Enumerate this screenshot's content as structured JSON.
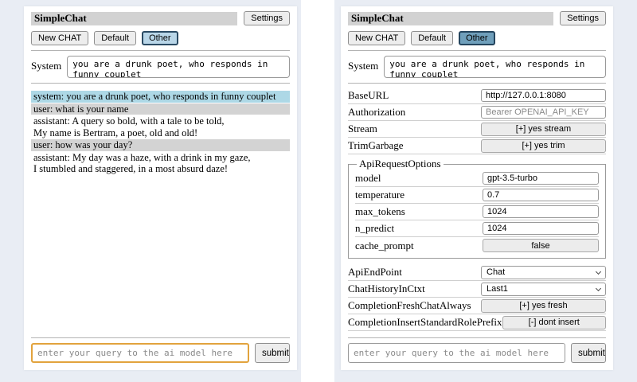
{
  "left": {
    "title": "SimpleChat",
    "settings_button": "Settings",
    "toolbar": {
      "new_chat": "New CHAT",
      "default_btn": "Default",
      "other": "Other"
    },
    "system": {
      "label": "System",
      "value": "you are a drunk poet, who responds in funny couplet"
    },
    "messages": [
      {
        "role": "system",
        "text": "system: you are a drunk poet, who responds in funny couplet"
      },
      {
        "role": "user",
        "text": "user: what is your name"
      },
      {
        "role": "assistant",
        "text": "assistant: A query so bold, with a tale to be told,\nMy name is Bertram, a poet, old and old!"
      },
      {
        "role": "user",
        "text": "user: how was your day?"
      },
      {
        "role": "assistant",
        "text": "assistant: My day was a haze, with a drink in my gaze,\nI stumbled and staggered, in a most absurd daze!"
      }
    ],
    "query": {
      "placeholder": "enter your query to the ai model here",
      "submit": "submit"
    }
  },
  "right": {
    "title": "SimpleChat",
    "settings_button": "Settings",
    "toolbar": {
      "new_chat": "New CHAT",
      "default_btn": "Default",
      "other": "Other"
    },
    "system": {
      "label": "System",
      "value": "you are a drunk poet, who responds in funny couplet"
    },
    "settings": {
      "base_url": {
        "label": "BaseURL",
        "value": "http://127.0.0.1:8080"
      },
      "authorization": {
        "label": "Authorization",
        "placeholder": "Bearer OPENAI_API_KEY"
      },
      "stream": {
        "label": "Stream",
        "button": "[+] yes stream"
      },
      "trim_garbage": {
        "label": "TrimGarbage",
        "button": "[+] yes trim"
      },
      "api_request_options": {
        "legend": "ApiRequestOptions",
        "model": {
          "label": "model",
          "value": "gpt-3.5-turbo"
        },
        "temperature": {
          "label": "temperature",
          "value": "0.7"
        },
        "max_tokens": {
          "label": "max_tokens",
          "value": "1024"
        },
        "n_predict": {
          "label": "n_predict",
          "value": "1024"
        },
        "cache_prompt": {
          "label": "cache_prompt",
          "button": "false"
        }
      },
      "api_endpoint": {
        "label": "ApiEndPoint",
        "value": "Chat"
      },
      "chat_history_in_ctxt": {
        "label": "ChatHistoryInCtxt",
        "value": "Last1"
      },
      "completion_fresh_chat_always": {
        "label": "CompletionFreshChatAlways",
        "button": "[+] yes fresh"
      },
      "completion_insert_standard_role_prefix": {
        "label": "CompletionInsertStandardRolePrefix",
        "button": "[-] dont insert"
      }
    },
    "query": {
      "placeholder": "enter your query to the ai model here",
      "submit": "submit"
    }
  },
  "colors": {
    "page_bg": "#e9edf4",
    "titlebar_bg": "#d2d2d2",
    "selected_tab_light": "#b9d6e8",
    "selected_tab_dark": "#6f9fbb",
    "tab_selected_border": "#2a4a63",
    "message_system_bg": "#add8e6",
    "message_user_bg": "#d3d3d3",
    "focused_input_border": "#e2a33d"
  }
}
